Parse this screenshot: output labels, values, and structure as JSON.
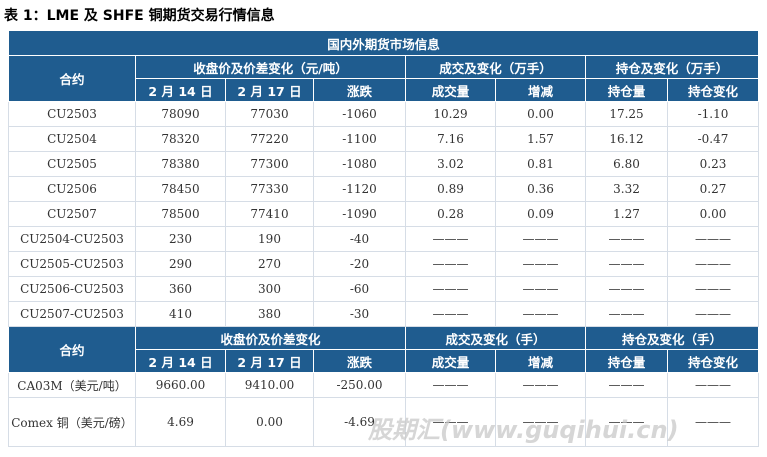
{
  "title": "表 1：LME 及 SHFE 铜期货交易行情信息",
  "table": {
    "section_title": "国内外期货市场信息",
    "header1": {
      "contract": "合约",
      "close": "收盘价及价差变化（元/吨）",
      "volume": "成交及变化（万手）",
      "oi": "持仓及变化（万手）"
    },
    "header2": [
      "2 月 14 日",
      "2 月 17 日",
      "涨跌",
      "成交量",
      "增减",
      "持仓量",
      "持仓变化"
    ],
    "rows": [
      [
        "CU2503",
        "78090",
        "77030",
        "-1060",
        "10.29",
        "0.00",
        "17.25",
        "-1.10"
      ],
      [
        "CU2504",
        "78320",
        "77220",
        "-1100",
        "7.16",
        "1.57",
        "16.12",
        "-0.47"
      ],
      [
        "CU2505",
        "78380",
        "77300",
        "-1080",
        "3.02",
        "0.81",
        "6.80",
        "0.23"
      ],
      [
        "CU2506",
        "78450",
        "77330",
        "-1120",
        "0.89",
        "0.36",
        "3.32",
        "0.27"
      ],
      [
        "CU2507",
        "78500",
        "77410",
        "-1090",
        "0.28",
        "0.09",
        "1.27",
        "0.00"
      ],
      [
        "CU2504-CU2503",
        "230",
        "190",
        "-40",
        "———",
        "———",
        "———",
        "———"
      ],
      [
        "CU2505-CU2503",
        "290",
        "270",
        "-20",
        "———",
        "———",
        "———",
        "———"
      ],
      [
        "CU2506-CU2503",
        "360",
        "300",
        "-60",
        "———",
        "———",
        "———",
        "———"
      ],
      [
        "CU2507-CU2503",
        "410",
        "380",
        "-30",
        "———",
        "———",
        "———",
        "———"
      ]
    ],
    "header3": {
      "contract": "合约",
      "close": "收盘价及价差变化",
      "volume": "成交及变化（手）",
      "oi": "持仓及变化（手）"
    },
    "header4": [
      "2 月 14 日",
      "2 月 17 日",
      "涨跌",
      "成交量",
      "增减",
      "持仓量",
      "持仓变化"
    ],
    "rows2": [
      [
        "CA03M（美元/吨）",
        "9660.00",
        "9410.00",
        "-250.00",
        "———",
        "———",
        "———",
        "———"
      ],
      [
        "Comex 铜（美元/磅）",
        "4.69",
        "0.00",
        "-4.69",
        "———",
        "———",
        "———",
        "———"
      ]
    ]
  },
  "watermark": "股期汇(www.guqihui.cn)"
}
